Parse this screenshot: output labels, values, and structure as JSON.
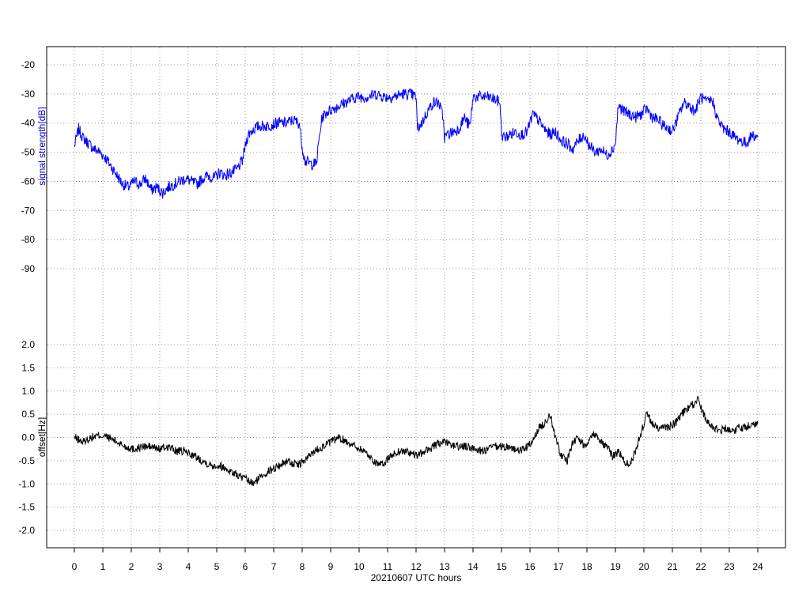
{
  "chart_data": [
    {
      "type": "line",
      "panel": "top",
      "ylabel": "signal strength[dB]",
      "ylim": [
        -100,
        -15
      ],
      "yticks": [
        -20,
        -30,
        -40,
        -50,
        -60,
        -70,
        -80,
        -90
      ],
      "xlim": [
        0,
        24
      ],
      "xticks": [
        0,
        1,
        2,
        3,
        4,
        5,
        6,
        7,
        8,
        9,
        10,
        11,
        12,
        13,
        14,
        15,
        16,
        17,
        18,
        19,
        20,
        21,
        22,
        23,
        24
      ],
      "grid": true,
      "series": [
        {
          "color": "#0000ff",
          "x": [
            0,
            0.15,
            0.3,
            0.5,
            0.7,
            0.9,
            1.1,
            1.3,
            1.5,
            1.7,
            1.9,
            2.1,
            2.3,
            2.5,
            2.7,
            2.9,
            3.1,
            3.3,
            3.5,
            3.7,
            3.9,
            4.1,
            4.3,
            4.5,
            4.7,
            4.9,
            5.1,
            5.3,
            5.5,
            5.7,
            5.9,
            6.0,
            6.1,
            6.3,
            6.5,
            6.8,
            7.1,
            7.4,
            7.7,
            7.9,
            8.0,
            8.1,
            8.3,
            8.5,
            8.6,
            8.7,
            8.9,
            9.1,
            9.3,
            9.5,
            9.7,
            9.9,
            10.1,
            10.3,
            10.6,
            10.9,
            11.2,
            11.5,
            11.8,
            12.0,
            12.05,
            12.2,
            12.4,
            12.6,
            12.8,
            12.95,
            13.0,
            13.1,
            13.3,
            13.5,
            13.7,
            13.8,
            13.9,
            14.0,
            14.2,
            14.5,
            14.8,
            14.95,
            15.0,
            15.1,
            15.3,
            15.5,
            15.7,
            15.9,
            16.0,
            16.1,
            16.3,
            16.5,
            16.7,
            16.9,
            17.1,
            17.3,
            17.5,
            17.7,
            17.9,
            18.1,
            18.3,
            18.5,
            18.7,
            18.9,
            19.0,
            19.1,
            19.3,
            19.5,
            19.7,
            19.9,
            20.1,
            20.3,
            20.5,
            20.7,
            20.9,
            21.0,
            21.2,
            21.4,
            21.6,
            21.8,
            22.0,
            22.2,
            22.4,
            22.6,
            22.8,
            23.0,
            23.2,
            23.4,
            23.6,
            23.8,
            24.0
          ],
          "values": [
            -48,
            -42,
            -45,
            -47,
            -49,
            -50,
            -52,
            -55,
            -58,
            -61,
            -62,
            -60,
            -61,
            -59,
            -63,
            -62,
            -64,
            -62,
            -61,
            -60,
            -59,
            -60,
            -61,
            -59,
            -58,
            -59,
            -57,
            -58,
            -57,
            -56,
            -53,
            -48,
            -44,
            -42,
            -41,
            -41,
            -40,
            -40,
            -39,
            -40,
            -48,
            -53,
            -54,
            -54,
            -45,
            -38,
            -36,
            -35,
            -34,
            -33,
            -32,
            -31,
            -31,
            -31,
            -30,
            -31,
            -31,
            -30,
            -30,
            -31,
            -42,
            -40,
            -36,
            -33,
            -33,
            -38,
            -45,
            -44,
            -43,
            -42,
            -38,
            -40,
            -41,
            -31,
            -31,
            -31,
            -32,
            -33,
            -44,
            -45,
            -44,
            -43,
            -44,
            -43,
            -40,
            -37,
            -39,
            -42,
            -44,
            -43,
            -46,
            -47,
            -49,
            -46,
            -44,
            -48,
            -50,
            -49,
            -51,
            -49,
            -47,
            -34,
            -36,
            -37,
            -38,
            -37,
            -35,
            -38,
            -39,
            -41,
            -42,
            -43,
            -38,
            -33,
            -34,
            -36,
            -31,
            -33,
            -32,
            -39,
            -42,
            -43,
            -45,
            -46,
            -47,
            -44,
            -45
          ]
        }
      ]
    },
    {
      "type": "line",
      "panel": "bottom",
      "ylabel": "offset[Hz]",
      "xlabel": "20210607 UTC hours",
      "ylim": [
        -2.4,
        2.4
      ],
      "yticks": [
        "2.0",
        "1.5",
        "1.0",
        "0.5",
        "0.0",
        "-0.5",
        "-1.0",
        "-1.5",
        "-2.0"
      ],
      "xlim": [
        0,
        24
      ],
      "grid": true,
      "series": [
        {
          "color": "#000000",
          "x": [
            0,
            0.3,
            0.6,
            0.9,
            1.2,
            1.5,
            1.8,
            2.1,
            2.4,
            2.7,
            3.0,
            3.3,
            3.6,
            3.9,
            4.2,
            4.5,
            4.8,
            5.1,
            5.4,
            5.7,
            6.0,
            6.3,
            6.6,
            6.9,
            7.2,
            7.5,
            7.8,
            8.1,
            8.4,
            8.7,
            9.0,
            9.3,
            9.6,
            9.9,
            10.2,
            10.5,
            10.8,
            11.1,
            11.4,
            11.7,
            12.0,
            12.3,
            12.6,
            12.9,
            13.2,
            13.5,
            13.8,
            14.1,
            14.4,
            14.7,
            15.0,
            15.3,
            15.6,
            15.9,
            16.1,
            16.3,
            16.5,
            16.7,
            16.9,
            17.1,
            17.3,
            17.5,
            17.7,
            17.9,
            18.1,
            18.3,
            18.5,
            18.7,
            18.9,
            19.1,
            19.3,
            19.5,
            19.7,
            19.9,
            20.1,
            20.3,
            20.5,
            20.7,
            20.9,
            21.1,
            21.3,
            21.5,
            21.7,
            21.9,
            22.1,
            22.3,
            22.5,
            22.7,
            22.9,
            23.1,
            23.3,
            23.6,
            24.0
          ],
          "values": [
            0.0,
            -0.1,
            0.0,
            0.05,
            0.0,
            -0.1,
            -0.2,
            -0.25,
            -0.2,
            -0.2,
            -0.25,
            -0.2,
            -0.3,
            -0.3,
            -0.4,
            -0.5,
            -0.6,
            -0.6,
            -0.7,
            -0.8,
            -0.9,
            -1.0,
            -0.8,
            -0.7,
            -0.6,
            -0.5,
            -0.6,
            -0.5,
            -0.3,
            -0.2,
            -0.1,
            0.0,
            -0.1,
            -0.2,
            -0.3,
            -0.5,
            -0.6,
            -0.4,
            -0.3,
            -0.3,
            -0.4,
            -0.3,
            -0.2,
            -0.1,
            -0.15,
            -0.2,
            -0.2,
            -0.25,
            -0.3,
            -0.2,
            -0.2,
            -0.2,
            -0.3,
            -0.2,
            -0.1,
            0.2,
            0.3,
            0.5,
            0.0,
            -0.4,
            -0.5,
            -0.1,
            0.0,
            -0.2,
            0.0,
            0.1,
            -0.1,
            -0.2,
            -0.4,
            -0.3,
            -0.5,
            -0.6,
            -0.3,
            0.1,
            0.5,
            0.3,
            0.2,
            0.2,
            0.25,
            0.3,
            0.5,
            0.6,
            0.7,
            0.8,
            0.5,
            0.3,
            0.2,
            0.15,
            0.2,
            0.15,
            0.2,
            0.25,
            0.3
          ]
        }
      ]
    }
  ]
}
